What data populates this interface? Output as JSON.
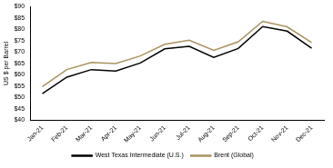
{
  "chart_data": {
    "type": "line",
    "y_label": "US $ per Barrel",
    "categories": [
      "Jan-21",
      "Feb-21",
      "Mar-21",
      "Apr-21",
      "May-21",
      "Jun-21",
      "Jul-21",
      "Aug-21",
      "Sep-21",
      "Oct-21",
      "Nov-21",
      "Dec-21"
    ],
    "series": [
      {
        "name": "West Texas Intermediate (U.S.)",
        "color": "#000000",
        "values": [
          51.7,
          59.0,
          62.3,
          61.7,
          65.2,
          71.4,
          72.5,
          67.7,
          71.6,
          81.2,
          79.2,
          71.7
        ]
      },
      {
        "name": "Brent (Global)",
        "color": "#a8925f",
        "values": [
          54.8,
          62.3,
          65.4,
          65.0,
          68.3,
          73.4,
          75.2,
          70.8,
          74.5,
          83.5,
          81.1,
          74.2
        ]
      }
    ],
    "ylim": [
      40,
      90
    ],
    "yticks": [
      {
        "value": 40,
        "label": "$40"
      },
      {
        "value": 45,
        "label": "$45"
      },
      {
        "value": 50,
        "label": "$50"
      },
      {
        "value": 55,
        "label": "$55"
      },
      {
        "value": 60,
        "label": "$60"
      },
      {
        "value": 65,
        "label": "$65"
      },
      {
        "value": 70,
        "label": "$70"
      },
      {
        "value": 75,
        "label": "$75"
      },
      {
        "value": 80,
        "label": "$80"
      },
      {
        "value": 85,
        "label": "$85"
      },
      {
        "value": 90,
        "label": "$90"
      }
    ],
    "grid": false,
    "legend": "bottom"
  }
}
